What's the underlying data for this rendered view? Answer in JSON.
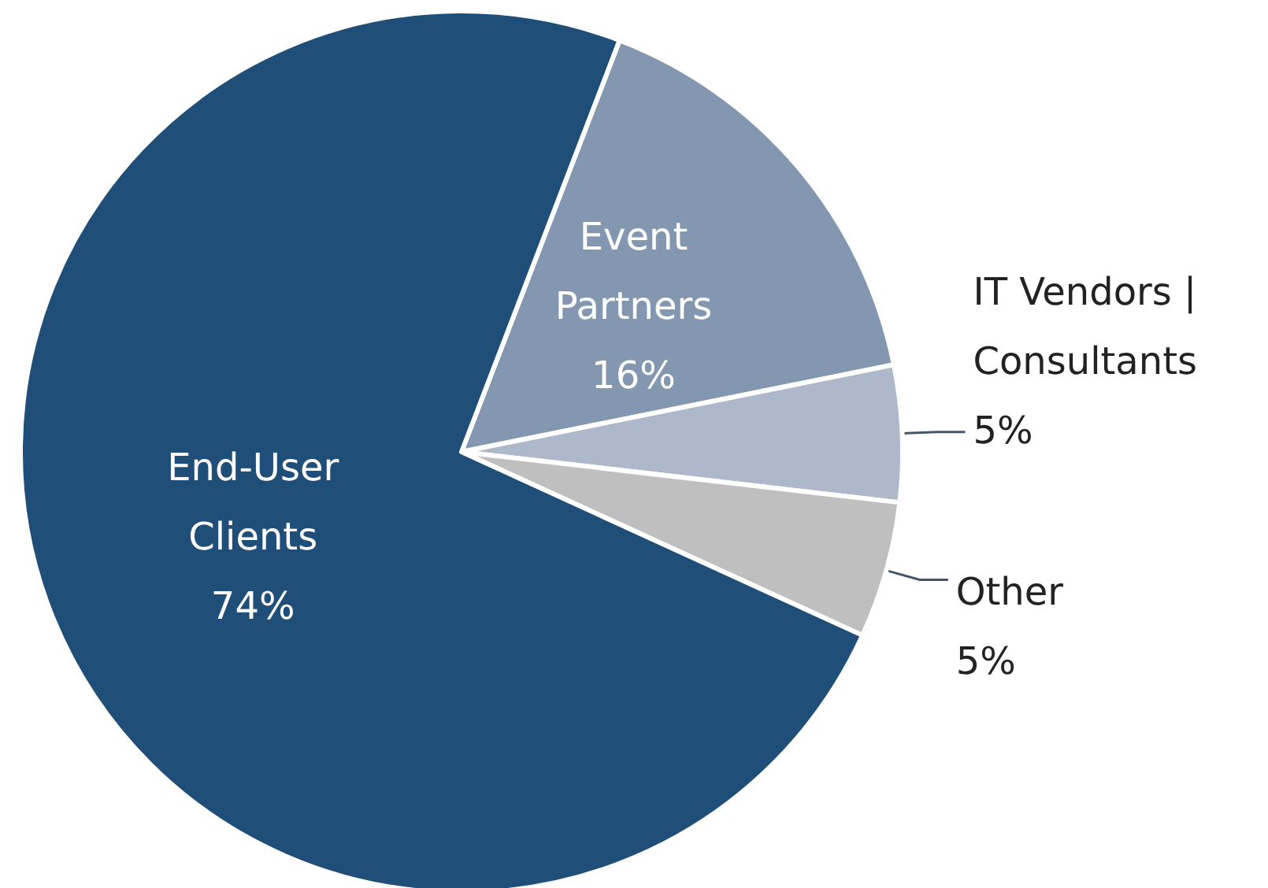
{
  "chart_data": {
    "type": "pie",
    "categories": [
      "Event\nPartners",
      "IT Vendors |\nConsultants",
      "Other",
      "End-User\nClients"
    ],
    "values": [
      16,
      5,
      5,
      74
    ],
    "colors": [
      "#8497b0",
      "#adb9ca",
      "#bfbfbf",
      "#1f4e79"
    ],
    "value_labels": [
      "16%",
      "5%",
      "5%",
      "74%"
    ],
    "legend": false
  }
}
